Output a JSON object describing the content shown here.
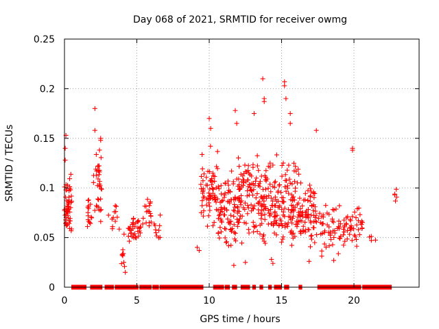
{
  "chart_data": {
    "type": "scatter",
    "title": "Day 068 of 2021, SRMTID for receiver owmg",
    "xlabel": "GPS time / hours",
    "ylabel": "SRMTID / TECUs",
    "xlim": [
      0,
      24.5
    ],
    "ylim": [
      0,
      0.25
    ],
    "xticks": [
      0,
      5,
      10,
      15,
      20
    ],
    "xtick_labels": [
      "0",
      "5",
      "10",
      "15",
      "20"
    ],
    "yticks": [
      0,
      0.05,
      0.1,
      0.15,
      0.2,
      0.25
    ],
    "ytick_labels": [
      "0",
      "0.05",
      "0.1",
      "0.15",
      "0.2",
      "0.25"
    ],
    "grid": true,
    "marker": "+",
    "color": "#ff0000",
    "zero_segments": [
      [
        0.5,
        1.5
      ],
      [
        1.8,
        2.6
      ],
      [
        2.8,
        3.2
      ],
      [
        3.25,
        3.4
      ],
      [
        3.5,
        5.1
      ],
      [
        5.2,
        6.0
      ],
      [
        6.1,
        6.5
      ],
      [
        6.6,
        9.6
      ],
      [
        10.3,
        11.0
      ],
      [
        11.1,
        11.4
      ],
      [
        11.6,
        11.9
      ],
      [
        12.2,
        12.8
      ],
      [
        13.0,
        13.2
      ],
      [
        13.5,
        13.7
      ],
      [
        14.1,
        14.3
      ],
      [
        14.5,
        15.0
      ],
      [
        15.2,
        15.5
      ],
      [
        16.2,
        16.4
      ],
      [
        17.5,
        20.5
      ],
      [
        20.6,
        22.6
      ]
    ],
    "clusters": [
      {
        "x": [
          0.0,
          0.5
        ],
        "y": [
          0.04,
          0.12
        ],
        "n": 55
      },
      {
        "x": [
          1.5,
          1.9
        ],
        "y": [
          0.05,
          0.1
        ],
        "n": 15
      },
      {
        "x": [
          2.0,
          2.6
        ],
        "y": [
          0.05,
          0.15
        ],
        "n": 35
      },
      {
        "x": [
          3.0,
          3.8
        ],
        "y": [
          0.05,
          0.09
        ],
        "n": 12
      },
      {
        "x": [
          3.9,
          4.2
        ],
        "y": [
          0.015,
          0.06
        ],
        "n": 8
      },
      {
        "x": [
          4.4,
          5.3
        ],
        "y": [
          0.04,
          0.08
        ],
        "n": 35
      },
      {
        "x": [
          5.4,
          6.0
        ],
        "y": [
          0.05,
          0.105
        ],
        "n": 18
      },
      {
        "x": [
          6.2,
          6.7
        ],
        "y": [
          0.04,
          0.08
        ],
        "n": 10
      },
      {
        "x": [
          9.1,
          9.4
        ],
        "y": [
          0.03,
          0.05
        ],
        "n": 2
      },
      {
        "x": [
          9.4,
          10.6
        ],
        "y": [
          0.03,
          0.16
        ],
        "n": 70
      },
      {
        "x": [
          10.6,
          12.0
        ],
        "y": [
          0.025,
          0.13
        ],
        "n": 90
      },
      {
        "x": [
          12.0,
          13.5
        ],
        "y": [
          0.03,
          0.15
        ],
        "n": 95
      },
      {
        "x": [
          13.5,
          14.8
        ],
        "y": [
          0.03,
          0.14
        ],
        "n": 90
      },
      {
        "x": [
          14.8,
          16.2
        ],
        "y": [
          0.025,
          0.14
        ],
        "n": 95
      },
      {
        "x": [
          16.2,
          17.8
        ],
        "y": [
          0.025,
          0.12
        ],
        "n": 80
      },
      {
        "x": [
          17.8,
          19.0
        ],
        "y": [
          0.03,
          0.09
        ],
        "n": 40
      },
      {
        "x": [
          19.0,
          20.2
        ],
        "y": [
          0.03,
          0.09
        ],
        "n": 35
      },
      {
        "x": [
          20.2,
          20.6
        ],
        "y": [
          0.04,
          0.09
        ],
        "n": 12
      },
      {
        "x": [
          21.0,
          21.5
        ],
        "y": [
          0.04,
          0.06
        ],
        "n": 4
      },
      {
        "x": [
          22.8,
          22.95
        ],
        "y": [
          0.075,
          0.105
        ],
        "n": 5
      }
    ],
    "notable_points": [
      {
        "x": 2.1,
        "y": 0.18
      },
      {
        "x": 2.1,
        "y": 0.158
      },
      {
        "x": 2.5,
        "y": 0.15
      },
      {
        "x": 2.5,
        "y": 0.148
      },
      {
        "x": 0.1,
        "y": 0.153
      },
      {
        "x": 0.05,
        "y": 0.14
      },
      {
        "x": 0.05,
        "y": 0.128
      },
      {
        "x": 4.2,
        "y": 0.015
      },
      {
        "x": 4.1,
        "y": 0.025
      },
      {
        "x": 10.0,
        "y": 0.17
      },
      {
        "x": 10.1,
        "y": 0.16
      },
      {
        "x": 11.8,
        "y": 0.178
      },
      {
        "x": 11.9,
        "y": 0.165
      },
      {
        "x": 13.1,
        "y": 0.175
      },
      {
        "x": 13.7,
        "y": 0.21
      },
      {
        "x": 13.8,
        "y": 0.19
      },
      {
        "x": 13.8,
        "y": 0.187
      },
      {
        "x": 15.2,
        "y": 0.207
      },
      {
        "x": 15.2,
        "y": 0.203
      },
      {
        "x": 15.3,
        "y": 0.19
      },
      {
        "x": 15.6,
        "y": 0.175
      },
      {
        "x": 15.6,
        "y": 0.165
      },
      {
        "x": 17.4,
        "y": 0.158
      },
      {
        "x": 19.9,
        "y": 0.14
      },
      {
        "x": 19.9,
        "y": 0.138
      },
      {
        "x": 11.7,
        "y": 0.022
      },
      {
        "x": 12.5,
        "y": 0.025
      },
      {
        "x": 14.3,
        "y": 0.028
      },
      {
        "x": 14.4,
        "y": 0.024
      },
      {
        "x": 16.9,
        "y": 0.026
      },
      {
        "x": 18.6,
        "y": 0.027
      }
    ]
  }
}
